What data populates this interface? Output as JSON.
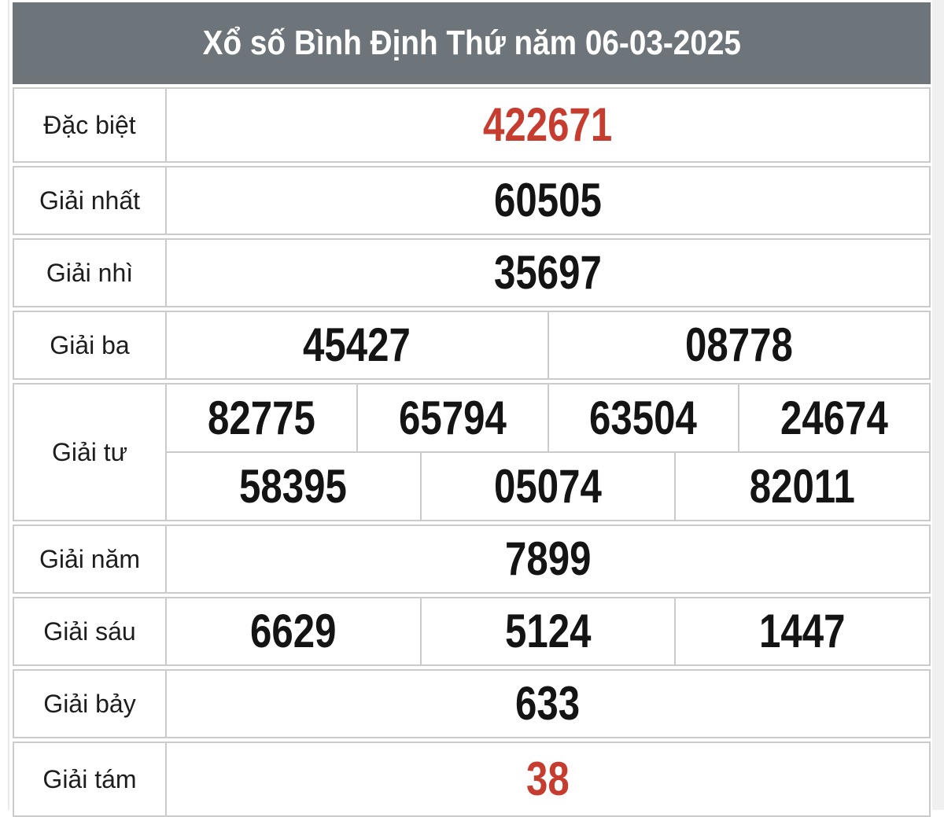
{
  "page": {
    "title": "Xổ số Bình Định Thứ năm 06-03-2025"
  },
  "colors": {
    "header_background": "#6d757b",
    "header_text": "#ffffff",
    "special_number_red": "#c63c2e",
    "number_black": "#141414",
    "grid_border": "#cbcbcb"
  },
  "results_table": {
    "rows": [
      {
        "label": "Đặc biệt",
        "highlight": true,
        "numbers": [
          [
            "422671"
          ]
        ]
      },
      {
        "label": "Giải nhất",
        "highlight": false,
        "numbers": [
          [
            "60505"
          ]
        ]
      },
      {
        "label": "Giải nhì",
        "highlight": false,
        "numbers": [
          [
            "35697"
          ]
        ]
      },
      {
        "label": "Giải ba",
        "highlight": false,
        "numbers": [
          [
            "45427",
            "08778"
          ]
        ]
      },
      {
        "label": "Giải tư",
        "highlight": false,
        "numbers": [
          [
            "82775",
            "65794",
            "63504",
            "24674"
          ],
          [
            "58395",
            "05074",
            "82011"
          ]
        ]
      },
      {
        "label": "Giải năm",
        "highlight": false,
        "numbers": [
          [
            "7899"
          ]
        ]
      },
      {
        "label": "Giải sáu",
        "highlight": false,
        "numbers": [
          [
            "6629",
            "5124",
            "1447"
          ]
        ]
      },
      {
        "label": "Giải bảy",
        "highlight": false,
        "numbers": [
          [
            "633"
          ]
        ]
      },
      {
        "label": "Giải tám",
        "highlight": true,
        "numbers": [
          [
            "38"
          ]
        ]
      }
    ]
  }
}
